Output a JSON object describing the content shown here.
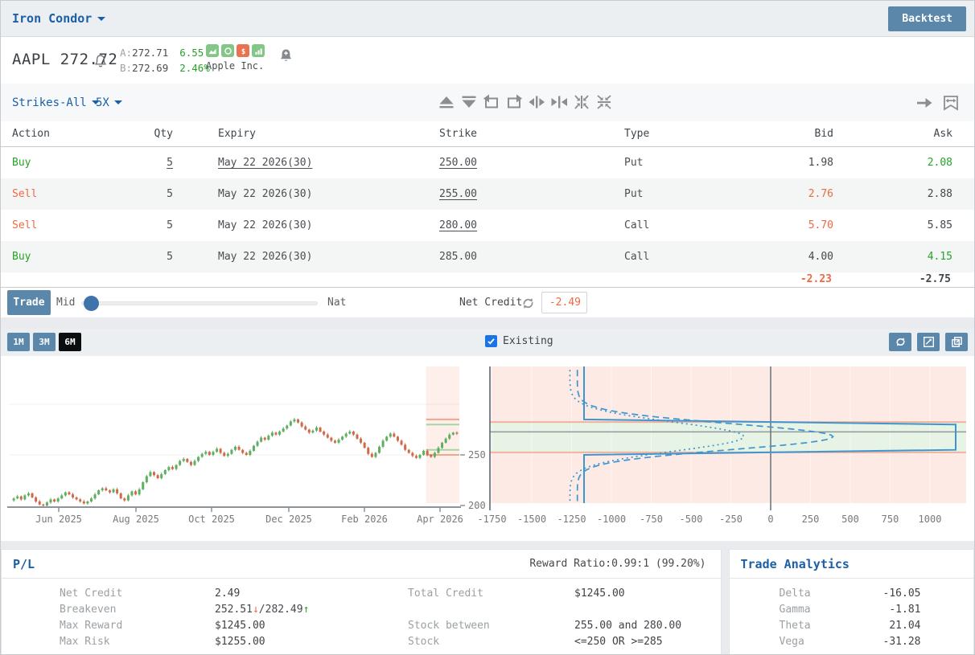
{
  "colors": {
    "blue": "#1a5fa8",
    "steel": "#5b87aa",
    "green": "#27a22a",
    "red": "#ed6a45",
    "chart_line": "#3d96d2"
  },
  "topbar": {
    "strategy": "Iron Condor",
    "backtest_label": "Backtest"
  },
  "stock": {
    "symbol": "AAPL",
    "price": "272.72",
    "a_label": "A:",
    "a_value": "272.71",
    "a_change": "6.55",
    "b_label": "B:",
    "b_value": "272.69",
    "b_change": "2.46%",
    "company": "Apple Inc."
  },
  "toolbar": {
    "strikes_label": "Strikes-All",
    "multiplier_label": "5X"
  },
  "icons": {
    "stock_row": [
      "bell-outline",
      "alarm-add"
    ],
    "chips": [
      "area-chart",
      "circle",
      "dollar",
      "bar-chart"
    ],
    "strike_toolbar": [
      "triangle-up",
      "triangle-down",
      "rotate-left",
      "rotate-right",
      "expand-horizontal",
      "collapse-horizontal",
      "merge-vertical",
      "merge-horizontal"
    ],
    "toolbar_right": [
      "arrow-right",
      "width-swap"
    ],
    "chart_header": [
      "sync",
      "trend-box",
      "open-popout"
    ],
    "trade_bar": [
      "refresh"
    ]
  },
  "table": {
    "headers": [
      "Action",
      "Qty",
      "Expiry",
      "Strike",
      "Type",
      "Bid",
      "Ask"
    ],
    "rows": [
      {
        "action": "Buy",
        "side": "buy",
        "qty": "5",
        "qty_u": true,
        "expiry": "May 22 2026(30)",
        "expiry_u": true,
        "strike": "250.00",
        "strike_u": true,
        "type": "Put",
        "bid": "1.98",
        "bid_c": "dark",
        "ask": "2.08",
        "ask_c": "green"
      },
      {
        "action": "Sell",
        "side": "sell",
        "qty": "5",
        "qty_u": false,
        "expiry": "May 22 2026(30)",
        "expiry_u": false,
        "strike": "255.00",
        "strike_u": true,
        "type": "Put",
        "bid": "2.76",
        "bid_c": "red",
        "ask": "2.88",
        "ask_c": "dark"
      },
      {
        "action": "Sell",
        "side": "sell",
        "qty": "5",
        "qty_u": false,
        "expiry": "May 22 2026(30)",
        "expiry_u": false,
        "strike": "280.00",
        "strike_u": true,
        "type": "Call",
        "bid": "5.70",
        "bid_c": "red",
        "ask": "5.85",
        "ask_c": "dark"
      },
      {
        "action": "Buy",
        "side": "buy",
        "qty": "5",
        "qty_u": false,
        "expiry": "May 22 2026(30)",
        "expiry_u": false,
        "strike": "285.00",
        "strike_u": false,
        "type": "Call",
        "bid": "4.00",
        "bid_c": "dark",
        "ask": "4.15",
        "ask_c": "green"
      }
    ],
    "totals": {
      "bid": "-2.23",
      "ask": "-2.75"
    }
  },
  "trade_bar": {
    "button_label": "Trade",
    "mid_label": "Mid",
    "nat_label": "Nat",
    "net_credit_label": "Net Credit",
    "net_credit_value": "-2.49"
  },
  "chart_controls": {
    "ranges": [
      {
        "label": "1M",
        "active": false
      },
      {
        "label": "3M",
        "active": false
      },
      {
        "label": "6M",
        "active": true
      }
    ],
    "existing_label": "Existing",
    "existing_checked": true
  },
  "chart_data": [
    {
      "type": "candlestick",
      "symbol": "AAPL",
      "x_tick_labels": [
        "Jun 2025",
        "Aug 2025",
        "Oct 2025",
        "Dec 2025",
        "Feb 2026",
        "Apr 2026"
      ],
      "y_ticks": [
        250,
        200
      ],
      "y_range": [
        200,
        335
      ],
      "closes": [
        205,
        207,
        209,
        206,
        210,
        212,
        208,
        204,
        201,
        200,
        203,
        206,
        204,
        207,
        210,
        213,
        211,
        208,
        206,
        204,
        202,
        204,
        207,
        211,
        215,
        217,
        215,
        213,
        216,
        212,
        207,
        205,
        210,
        214,
        211,
        216,
        223,
        229,
        233,
        230,
        227,
        231,
        235,
        238,
        236,
        240,
        244,
        246,
        243,
        240,
        244,
        248,
        251,
        253,
        250,
        253,
        256,
        252,
        249,
        251,
        255,
        258,
        255,
        252,
        250,
        254,
        259,
        263,
        267,
        265,
        269,
        272,
        270,
        273,
        276,
        279,
        283,
        285,
        282,
        278,
        275,
        272,
        274,
        277,
        273,
        270,
        267,
        264,
        262,
        265,
        268,
        271,
        273,
        270,
        266,
        262,
        257,
        251,
        248,
        252,
        258,
        264,
        268,
        271,
        268,
        264,
        260,
        255,
        252,
        249,
        247,
        250,
        254,
        250,
        248,
        252,
        257,
        262,
        266,
        270,
        272,
        271
      ],
      "expiry_zone_last_candles": 9,
      "strike_lines": [
        250,
        255,
        280,
        285
      ]
    },
    {
      "type": "payoff",
      "x_ticks": [
        -1750,
        -1500,
        -1250,
        -1000,
        -750,
        -500,
        -250,
        0,
        250,
        500,
        750,
        1000
      ],
      "strikes": [
        250,
        255,
        280,
        285
      ],
      "breakevens": [
        252.51,
        282.49
      ],
      "max_reward": 1245,
      "max_risk": -1255,
      "current_price": 272.72,
      "profit_zone": [
        252.51,
        282.49
      ],
      "series": [
        {
          "name": "expiration",
          "style": "solid"
        },
        {
          "name": "t-mid",
          "style": "dashed"
        },
        {
          "name": "t-now",
          "style": "dotted"
        }
      ]
    }
  ],
  "pl_panel": {
    "title": "P/L",
    "reward_ratio": "Reward Ratio:0.99:1 (99.20%)",
    "rows": [
      {
        "l_label": "Net Credit",
        "l_value": "2.49",
        "r_label": "Total Credit",
        "r_value": "$1245.00"
      },
      {
        "l_label": "Breakeven",
        "l_parts": [
          {
            "t": "252.51",
            "c": "dark"
          },
          {
            "t": "↓",
            "c": "red"
          },
          {
            "t": "/",
            "c": "dark"
          },
          {
            "t": "282.49",
            "c": "dark"
          },
          {
            "t": "↑",
            "c": "green"
          }
        ],
        "r_label": "",
        "r_value": ""
      },
      {
        "l_label": "Max Reward",
        "l_value": "$1245.00",
        "r_label": "Stock between",
        "r_value": "255.00 and 280.00"
      },
      {
        "l_label": "Max Risk",
        "l_value": "$1255.00",
        "r_label": "Stock",
        "r_value": "<=250 OR >=285"
      }
    ]
  },
  "analytics": {
    "title": "Trade Analytics",
    "rows": [
      {
        "label": "Delta",
        "value": "-16.05"
      },
      {
        "label": "Gamma",
        "value": "-1.81"
      },
      {
        "label": "Theta",
        "value": "21.04"
      },
      {
        "label": "Vega",
        "value": "-31.28"
      }
    ]
  }
}
